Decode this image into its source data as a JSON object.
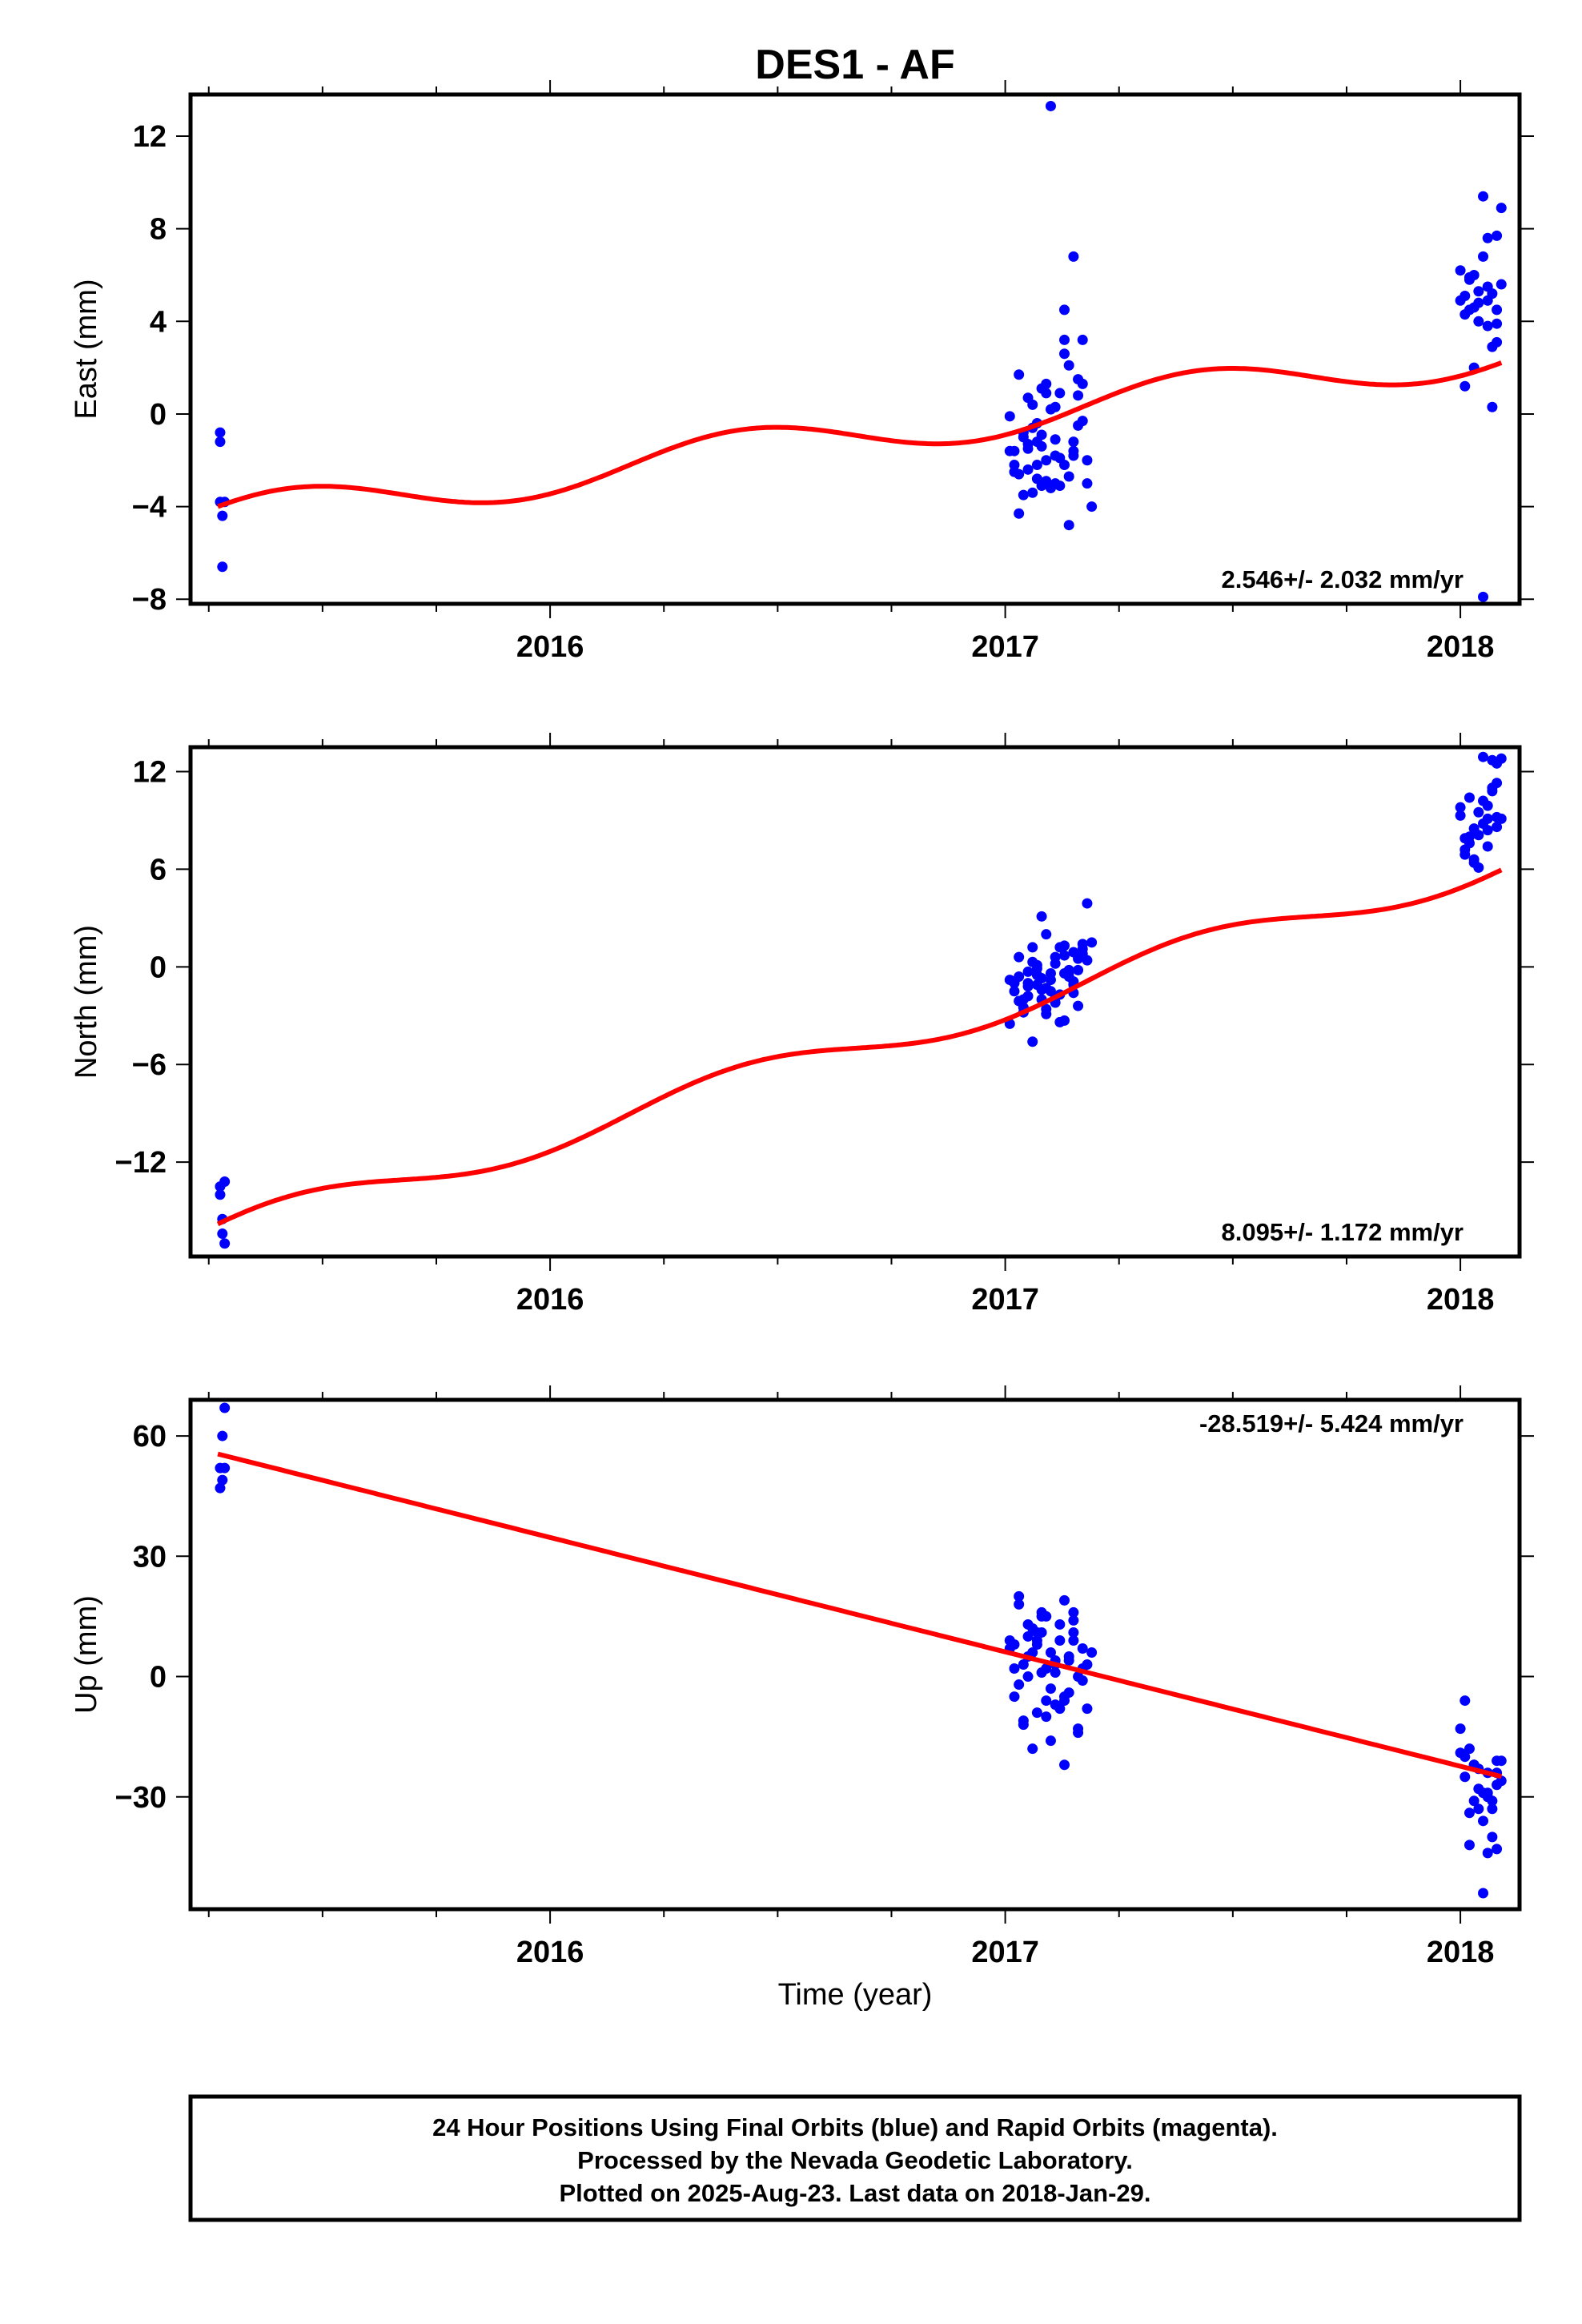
{
  "title": "DES1 - AF",
  "xlabel": "Time (year)",
  "footer": {
    "line1": "24 Hour Positions Using Final Orbits (blue) and Rapid Orbits (magenta).",
    "line2": "Processed by the Nevada Geodetic Laboratory.",
    "line3": "Plotted on 2025-Aug-23. Last data on 2018-Jan-29."
  },
  "colors": {
    "points": "#0000ff",
    "fit": "#ff0000",
    "frame": "#000000"
  },
  "chart_data": [
    {
      "type": "scatter",
      "ylabel": "East (mm)",
      "rate_text": "2.546+/- 2.032 mm/yr",
      "rate_position": "bottom-right",
      "xlim": [
        2015.21,
        2018.13
      ],
      "ylim": [
        -8.2,
        13.8
      ],
      "yticks": [
        12,
        8,
        4,
        0,
        -4,
        -8
      ],
      "ytick_labels": [
        "12",
        "8",
        "4",
        "0",
        "−4",
        "−8"
      ],
      "xticks": [
        2016,
        2017,
        2018
      ],
      "xtick_labels": [
        "2016",
        "2017",
        "2018"
      ],
      "grid": false,
      "fit": {
        "name": "model",
        "intercept": -4.0,
        "rate": 2.546,
        "annual_amp": 0.9,
        "annual_phase": 0.6
      },
      "series": [
        {
          "x": [
            2015.275,
            2015.275,
            2015.275,
            2015.28,
            2015.28,
            2015.285
          ],
          "y": [
            -0.8,
            -1.2,
            -3.8,
            -4.4,
            -6.6,
            -3.8
          ]
        },
        {
          "x": [
            2017.01,
            2017.02,
            2017.03,
            2017.04,
            2017.05,
            2017.06,
            2017.07,
            2017.08,
            2017.09,
            2017.1,
            2017.11,
            2017.12,
            2017.13,
            2017.14,
            2017.15,
            2017.16,
            2017.17,
            2017.18,
            2017.02,
            2017.04,
            2017.06,
            2017.08,
            2017.1,
            2017.12,
            2017.14,
            2017.16,
            2017.03,
            2017.05,
            2017.07,
            2017.09,
            2017.11,
            2017.13,
            2017.15,
            2017.17,
            2017.01,
            2017.03,
            2017.05,
            2017.07,
            2017.09,
            2017.11,
            2017.13,
            2017.15,
            2017.17,
            2017.19,
            2017.06,
            2017.08,
            2017.1,
            2017.12,
            2017.14,
            2017.04,
            2017.02,
            2017.16,
            2017.18,
            2017.13,
            2017.08,
            2017.15,
            2017.11,
            2017.05,
            2017.07,
            2017.09
          ],
          "y": [
            -0.1,
            -1.6,
            1.7,
            -0.8,
            -2.4,
            0.4,
            -1.2,
            1.1,
            -2.9,
            0.2,
            -1.8,
            -3.1,
            4.5,
            2.1,
            -1.6,
            0.8,
            -0.3,
            -3.0,
            -2.2,
            -3.5,
            -0.6,
            -1.4,
            -3.2,
            0.9,
            -2.7,
            1.5,
            -4.3,
            -1.5,
            -0.4,
            -2.0,
            -3.0,
            3.2,
            -1.2,
            1.3,
            -1.6,
            -2.6,
            0.7,
            -2.8,
            1.3,
            -1.1,
            -2.2,
            6.8,
            3.2,
            -4.0,
            -3.4,
            -0.9,
            13.3,
            -1.9,
            -4.8,
            -1.0,
            -2.5,
            -0.5,
            -2.0,
            2.6,
            -3.1,
            -1.8,
            0.3,
            -1.3,
            -2.2,
            0.9
          ]
        },
        {
          "x": [
            2018.0,
            2018.01,
            2018.02,
            2018.03,
            2018.04,
            2018.05,
            2018.06,
            2018.07,
            2018.08,
            2018.09,
            2018.01,
            2018.03,
            2018.05,
            2018.07,
            2018.09,
            2018.02,
            2018.04,
            2018.06,
            2018.08,
            2018.0,
            2018.02,
            2018.04,
            2018.06,
            2018.08,
            2018.05,
            2018.07,
            2018.03,
            2018.01,
            2018.06,
            2018.08
          ],
          "y": [
            6.2,
            4.3,
            5.8,
            2.0,
            4.8,
            9.4,
            7.6,
            5.2,
            3.1,
            8.9,
            1.2,
            4.6,
            6.8,
            0.3,
            5.6,
            5.9,
            4.0,
            5.5,
            7.7,
            4.9,
            4.5,
            5.3,
            3.8,
            4.5,
            -7.9,
            2.9,
            6.0,
            5.1,
            4.9,
            3.9
          ]
        }
      ]
    },
    {
      "type": "scatter",
      "ylabel": "North (mm)",
      "rate_text": "8.095+/- 1.172 mm/yr",
      "rate_position": "bottom-right",
      "xlim": [
        2015.21,
        2018.13
      ],
      "ylim": [
        -17.8,
        13.5
      ],
      "yticks": [
        12,
        6,
        0,
        -6,
        -12
      ],
      "ytick_labels": [
        "12",
        "6",
        "0",
        "−6",
        "−12"
      ],
      "xticks": [
        2016,
        2017,
        2018
      ],
      "xtick_labels": [
        "2016",
        "2017",
        "2018"
      ],
      "grid": false,
      "fit": {
        "name": "model",
        "intercept": -15.8,
        "rate": 8.095,
        "annual_amp": 1.0,
        "annual_phase": 0.6
      },
      "series": [
        {
          "x": [
            2015.275,
            2015.275,
            2015.28,
            2015.28,
            2015.285,
            2015.285
          ],
          "y": [
            -13.5,
            -14.0,
            -16.4,
            -15.5,
            -17.0,
            -13.2
          ]
        },
        {
          "x": [
            2017.01,
            2017.02,
            2017.03,
            2017.04,
            2017.05,
            2017.06,
            2017.07,
            2017.08,
            2017.09,
            2017.1,
            2017.11,
            2017.12,
            2017.13,
            2017.14,
            2017.15,
            2017.16,
            2017.17,
            2017.18,
            2017.02,
            2017.04,
            2017.06,
            2017.08,
            2017.1,
            2017.12,
            2017.14,
            2017.16,
            2017.03,
            2017.05,
            2017.07,
            2017.09,
            2017.11,
            2017.13,
            2017.15,
            2017.17,
            2017.01,
            2017.03,
            2017.05,
            2017.07,
            2017.09,
            2017.11,
            2017.13,
            2017.15,
            2017.17,
            2017.19,
            2017.06,
            2017.08,
            2017.1,
            2017.12,
            2017.14,
            2017.04,
            2017.02,
            2017.16,
            2017.18,
            2017.13,
            2017.08,
            2017.15,
            2017.11,
            2017.05,
            2017.07,
            2017.09
          ],
          "y": [
            -0.8,
            -1.5,
            0.6,
            -2.0,
            -0.3,
            1.2,
            -1.1,
            3.1,
            -2.6,
            -0.4,
            0.2,
            -1.7,
            1.3,
            -0.6,
            0.9,
            -2.4,
            1.4,
            3.9,
            -1.0,
            -2.8,
            0.3,
            -1.4,
            -0.8,
            -3.4,
            -0.2,
            0.5,
            -2.1,
            -1.2,
            -0.5,
            2.0,
            -1.9,
            0.7,
            -0.9,
            1.1,
            -3.5,
            -0.6,
            -1.8,
            0.1,
            -1.3,
            -2.2,
            -0.4,
            -1.1,
            0.8,
            1.5,
            -4.6,
            -0.7,
            -1.5,
            1.2,
            -0.3,
            -2.5,
            -0.9,
            -0.2,
            0.4,
            -3.3,
            -2.0,
            -1.6,
            0.6,
            -1.0,
            -0.1,
            -2.9
          ]
        },
        {
          "x": [
            2018.0,
            2018.01,
            2018.02,
            2018.03,
            2018.04,
            2018.05,
            2018.06,
            2018.07,
            2018.08,
            2018.09,
            2018.01,
            2018.03,
            2018.05,
            2018.07,
            2018.09,
            2018.02,
            2018.04,
            2018.06,
            2018.08,
            2018.0,
            2018.02,
            2018.04,
            2018.06,
            2018.08,
            2018.05,
            2018.07,
            2018.03,
            2018.01,
            2018.06,
            2018.08
          ],
          "y": [
            9.3,
            7.2,
            10.4,
            6.4,
            8.1,
            12.9,
            9.9,
            11.0,
            8.6,
            12.8,
            6.9,
            8.5,
            10.2,
            12.7,
            9.1,
            7.6,
            6.1,
            9.1,
            11.3,
            9.8,
            8.0,
            9.5,
            7.4,
            9.2,
            8.8,
            10.8,
            6.6,
            7.9,
            8.4,
            12.5
          ]
        }
      ]
    },
    {
      "type": "scatter",
      "ylabel": "Up (mm)",
      "rate_text": "-28.519+/- 5.424 mm/yr",
      "rate_position": "top-right",
      "xlim": [
        2015.21,
        2018.13
      ],
      "ylim": [
        -58,
        69
      ],
      "yticks": [
        60,
        30,
        0,
        -30
      ],
      "ytick_labels": [
        "60",
        "30",
        "0",
        "−30"
      ],
      "xticks": [
        2016,
        2017,
        2018
      ],
      "xtick_labels": [
        "2016",
        "2017",
        "2018"
      ],
      "grid": false,
      "fit": {
        "name": "model",
        "intercept": 55.5,
        "rate": -28.519,
        "annual_amp": 0,
        "annual_phase": 0
      },
      "series": [
        {
          "x": [
            2015.275,
            2015.275,
            2015.28,
            2015.28,
            2015.285,
            2015.285
          ],
          "y": [
            47,
            52,
            60,
            49,
            52,
            67
          ]
        },
        {
          "x": [
            2017.01,
            2017.02,
            2017.03,
            2017.04,
            2017.05,
            2017.06,
            2017.07,
            2017.08,
            2017.09,
            2017.1,
            2017.11,
            2017.12,
            2017.13,
            2017.14,
            2017.15,
            2017.16,
            2017.17,
            2017.18,
            2017.02,
            2017.04,
            2017.06,
            2017.08,
            2017.1,
            2017.12,
            2017.14,
            2017.16,
            2017.03,
            2017.05,
            2017.07,
            2017.09,
            2017.11,
            2017.13,
            2017.15,
            2017.17,
            2017.01,
            2017.03,
            2017.05,
            2017.07,
            2017.09,
            2017.11,
            2017.13,
            2017.15,
            2017.17,
            2017.19,
            2017.06,
            2017.08,
            2017.1,
            2017.12,
            2017.14,
            2017.04,
            2017.02,
            2017.16,
            2017.18,
            2017.13,
            2017.08,
            2017.15,
            2017.11,
            2017.05,
            2017.07,
            2017.09
          ],
          "y": [
            9,
            -5,
            20,
            3,
            13,
            -18,
            8,
            15,
            -10,
            6,
            1,
            -8,
            19,
            -4,
            11,
            -14,
            7,
            -8,
            2,
            -12,
            6,
            16,
            -3,
            9,
            5,
            -13,
            18,
            0,
            11,
            -6,
            4,
            -22,
            14,
            2,
            7,
            -2,
            10,
            -9,
            15,
            3,
            -5,
            9,
            -1,
            6,
            12,
            1,
            -16,
            13,
            4,
            -11,
            8,
            0,
            3,
            -6,
            11,
            16,
            -7,
            5,
            9,
            2
          ]
        },
        {
          "x": [
            2018.0,
            2018.01,
            2018.02,
            2018.03,
            2018.04,
            2018.05,
            2018.06,
            2018.07,
            2018.08,
            2018.09,
            2018.01,
            2018.03,
            2018.05,
            2018.07,
            2018.09,
            2018.02,
            2018.04,
            2018.06,
            2018.08,
            2018.0,
            2018.02,
            2018.04,
            2018.06,
            2018.08,
            2018.05,
            2018.07,
            2018.03,
            2018.01,
            2018.06,
            2018.08
          ],
          "y": [
            -13,
            -20,
            -42,
            -22,
            -28,
            -36,
            -24,
            -33,
            -43,
            -21,
            -6,
            -31,
            -29,
            -40,
            -26,
            -18,
            -33,
            -44,
            -27,
            -19,
            -34,
            -23,
            -30,
            -21,
            -54,
            -31,
            -22,
            -25,
            -29,
            -24
          ]
        }
      ]
    }
  ]
}
